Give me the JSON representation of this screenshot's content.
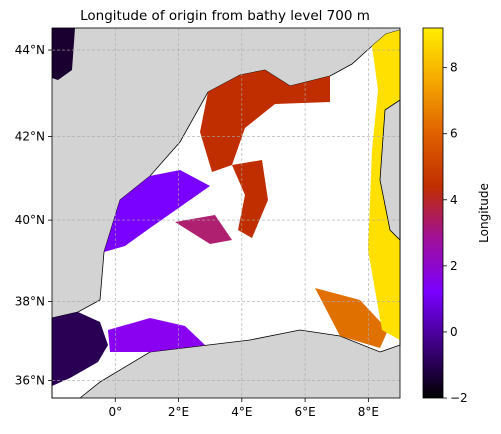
{
  "map": {
    "title": "Longitude of origin from bathy level 700 m",
    "xlim": [
      -2,
      9
    ],
    "ylim": [
      35.55,
      44.5
    ],
    "xticks": [
      {
        "value": 0,
        "label": "0°"
      },
      {
        "value": 2,
        "label": "2°E"
      },
      {
        "value": 4,
        "label": "4°E"
      },
      {
        "value": 6,
        "label": "6°E"
      },
      {
        "value": 8,
        "label": "8°E"
      }
    ],
    "yticks": [
      {
        "value": 36,
        "label": "36°N"
      },
      {
        "value": 38,
        "label": "38°N"
      },
      {
        "value": 40,
        "label": "40°N"
      },
      {
        "value": 42,
        "label": "42°N"
      },
      {
        "value": 44,
        "label": "44°N"
      }
    ],
    "projection": "mercator",
    "grid": true,
    "land_color": "#d3d3d3"
  },
  "colorbar": {
    "label": "Longitude",
    "lim": [
      -2,
      9.2
    ],
    "ticks": [
      {
        "value": -2,
        "label": "−2"
      },
      0,
      2,
      4,
      6,
      8
    ],
    "colormap": [
      "#000000",
      "#3d0080",
      "#7a00ff",
      "#a0109a",
      "#c02e00",
      "#e06000",
      "#f5a800",
      "#ffee00"
    ]
  }
}
